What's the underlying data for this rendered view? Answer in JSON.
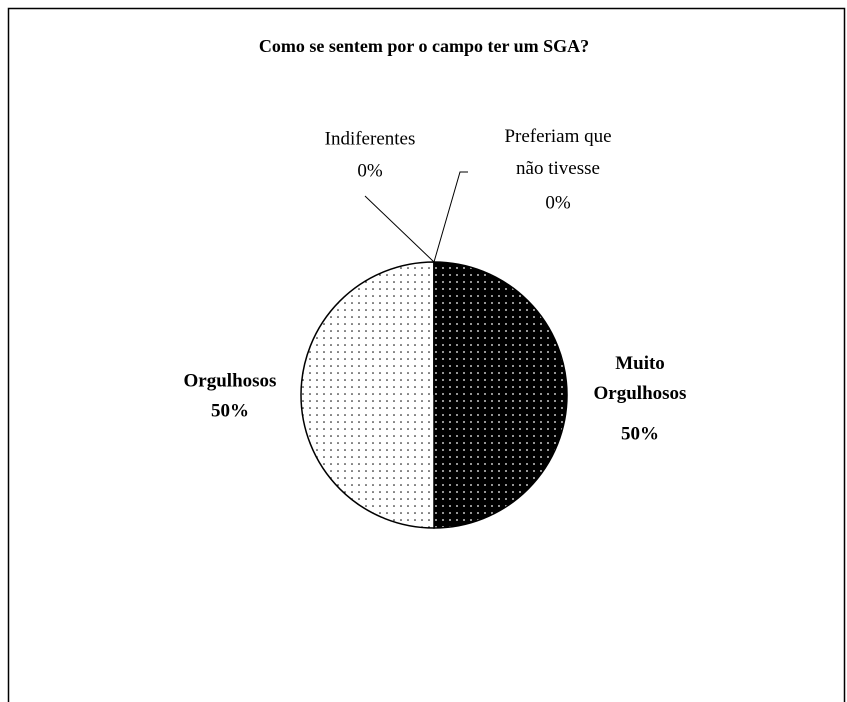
{
  "chart_data": {
    "type": "pie",
    "title": "Como se sentem por o campo ter um SGA?",
    "categories": [
      "Muito Orgulhosos",
      "Orgulhosos",
      "Indiferentes",
      "Preferiam que não tivesse"
    ],
    "values": [
      50,
      50,
      0,
      0
    ],
    "value_labels": [
      "50%",
      "50%",
      "0%",
      "0%"
    ],
    "colors": [
      "#000000",
      "#ffffff",
      "#ffffff",
      "#ffffff"
    ]
  }
}
